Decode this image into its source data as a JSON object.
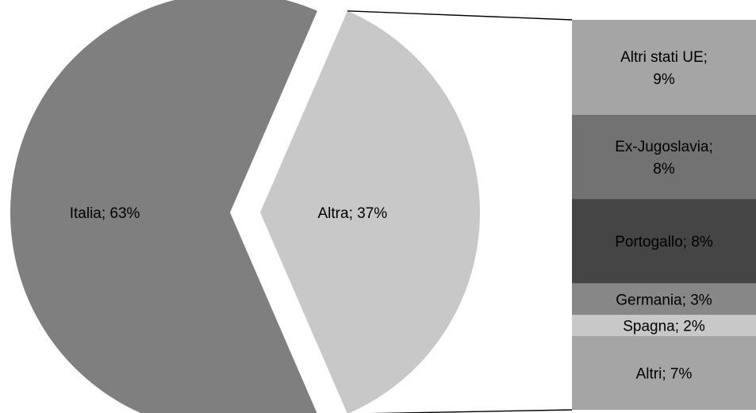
{
  "chart_data": {
    "type": "bar-of-pie",
    "pie": {
      "slices": [
        {
          "label": "Italia; 63%",
          "name": "Italia",
          "value": 63,
          "color": "#7f7f7f"
        },
        {
          "label": "Altra; 37%",
          "name": "Altra",
          "value": 37,
          "color": "#c8c8c8",
          "exploded": true
        }
      ]
    },
    "stack": {
      "segments": [
        {
          "lines": [
            "Altri stati UE;",
            "9%"
          ],
          "name": "Altri stati UE",
          "value": 9,
          "color": "#a5a5a5"
        },
        {
          "lines": [
            "Ex-Jugoslavia;",
            "8%"
          ],
          "name": "Ex-Jugoslavia",
          "value": 8,
          "color": "#727272"
        },
        {
          "lines": [
            "Portogallo; 8%"
          ],
          "name": "Portogallo",
          "value": 8,
          "color": "#454545"
        },
        {
          "lines": [
            "Germania; 3%"
          ],
          "name": "Germania",
          "value": 3,
          "color": "#878787"
        },
        {
          "lines": [
            "Spagna; 2%"
          ],
          "name": "Spagna",
          "value": 2,
          "color": "#c8c8c8"
        },
        {
          "lines": [
            "Altri; 7%"
          ],
          "name": "Altri",
          "value": 7,
          "color": "#a5a5a5"
        }
      ]
    },
    "unit": "%"
  }
}
